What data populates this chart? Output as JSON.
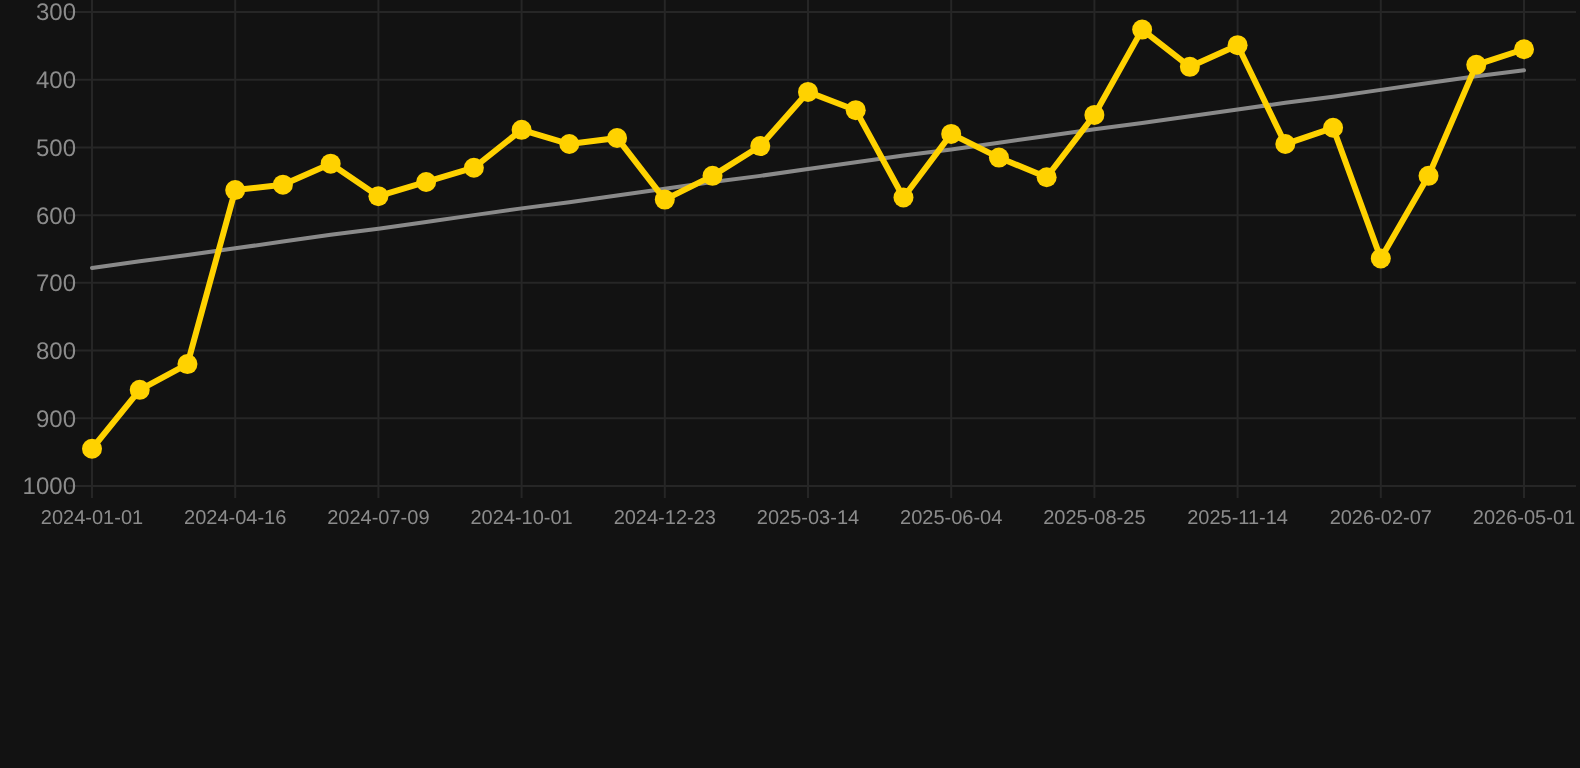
{
  "chart_data": {
    "type": "line",
    "categories": [
      "2024-01-01",
      null,
      null,
      "2024-04-16",
      null,
      null,
      "2024-07-09",
      null,
      null,
      "2024-10-01",
      null,
      null,
      "2024-12-23",
      null,
      null,
      "2025-03-14",
      null,
      null,
      "2025-06-04",
      null,
      null,
      "2025-08-25",
      null,
      null,
      "2025-11-14",
      null,
      null,
      "2026-02-07",
      null,
      null,
      "2026-05-01"
    ],
    "series": [
      {
        "color": "#ffd200",
        "marker": "circle",
        "values": [
          945,
          858,
          820,
          563,
          555,
          524,
          572,
          551,
          530,
          474,
          495,
          486,
          577,
          542,
          498,
          418,
          445,
          574,
          480,
          515,
          544,
          452,
          326,
          381,
          349,
          495,
          471,
          664,
          542,
          378,
          355
        ]
      },
      {
        "color": "#8a8a8a",
        "marker": "none",
        "values": [
          678,
          668,
          659,
          649,
          639,
          629,
          620,
          610,
          600,
          590,
          581,
          571,
          561,
          551,
          542,
          532,
          522,
          512,
          503,
          493,
          483,
          473,
          464,
          454,
          444,
          434,
          425,
          415,
          405,
          395,
          386
        ]
      }
    ],
    "ylim": [
      1000,
      300
    ],
    "yticks": [
      300,
      400,
      500,
      600,
      700,
      800,
      900,
      1000
    ],
    "grid": true
  }
}
